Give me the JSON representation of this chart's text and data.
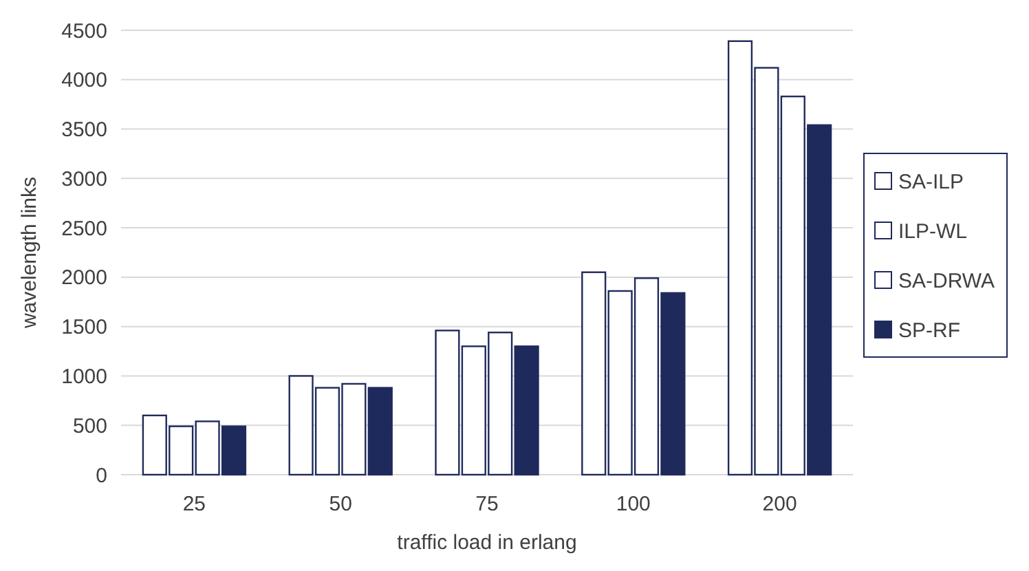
{
  "chart_data": {
    "type": "bar",
    "xlabel": "traffic load in erlang",
    "ylabel": "wavelength links",
    "categories": [
      "25",
      "50",
      "75",
      "100",
      "200"
    ],
    "series": [
      {
        "name": "SA-ILP",
        "color": "#ffffff",
        "values": [
          600,
          1000,
          1460,
          2050,
          4390
        ]
      },
      {
        "name": "ILP-WL",
        "color": "#ffffff",
        "values": [
          490,
          880,
          1300,
          1860,
          4120
        ]
      },
      {
        "name": "SA-DRWA",
        "color": "#ffffff",
        "values": [
          540,
          920,
          1440,
          1990,
          3830
        ]
      },
      {
        "name": "SP-RF",
        "color": "#1f2a5c",
        "values": [
          490,
          880,
          1300,
          1840,
          3540
        ]
      }
    ],
    "ylim": [
      0,
      4500
    ],
    "yticks": [
      0,
      500,
      1000,
      1500,
      2000,
      2500,
      3000,
      3500,
      4000,
      4500
    ],
    "grid": "y",
    "legend": "right"
  }
}
